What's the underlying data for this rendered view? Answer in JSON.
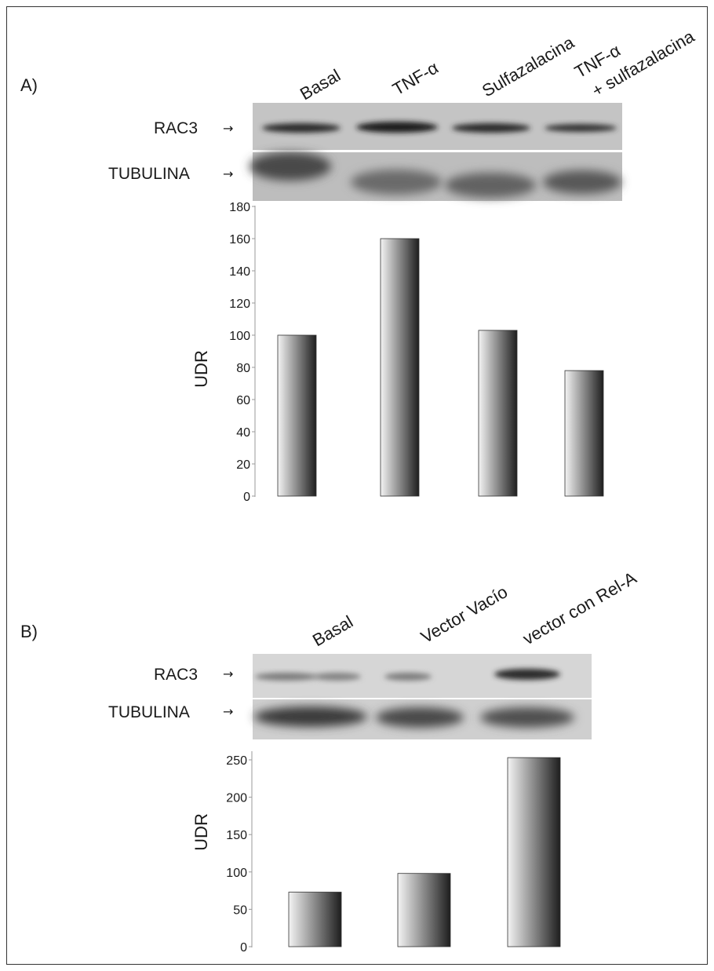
{
  "panels": [
    {
      "label": "A)",
      "lanes": [
        "Basal",
        "TNF-α",
        "Sulfazalacina",
        "TNF-α",
        "+ sulfazalacina"
      ],
      "blots": [
        {
          "label": "RAC3",
          "arrow": "→"
        },
        {
          "label": "TUBULINA",
          "arrow": "→"
        }
      ]
    },
    {
      "label": "B)",
      "lanes": [
        "Basal",
        "Vector Vacío",
        "vector con Rel-A"
      ],
      "blots": [
        {
          "label": "RAC3",
          "arrow": "→"
        },
        {
          "label": "TUBULINA",
          "arrow": "→"
        }
      ]
    }
  ],
  "chart_data": [
    {
      "type": "bar",
      "categories": [
        "Basal",
        "TNF-α",
        "Sulfazalacina",
        "TNF-α + sulfazalacina"
      ],
      "values": [
        100,
        160,
        103,
        78
      ],
      "ylabel": "UDR",
      "ylim": [
        0,
        180
      ],
      "yticks": [
        "0",
        "20",
        "40",
        "60",
        "80",
        "100",
        "120",
        "140",
        "160",
        "180"
      ],
      "grid": false,
      "colors": {
        "bar_light": "#f4f4f4",
        "bar_dark": "#1e1e1e"
      }
    },
    {
      "type": "bar",
      "categories": [
        "Basal",
        "Vector Vacío",
        "vector con Rel-A"
      ],
      "values": [
        73,
        98,
        253
      ],
      "ylabel": "UDR",
      "ylim": [
        0,
        250
      ],
      "yticks": [
        "0",
        "50",
        "100",
        "150",
        "200",
        "250"
      ],
      "grid": false,
      "colors": {
        "bar_light": "#f4f4f4",
        "bar_dark": "#1e1e1e"
      }
    }
  ]
}
